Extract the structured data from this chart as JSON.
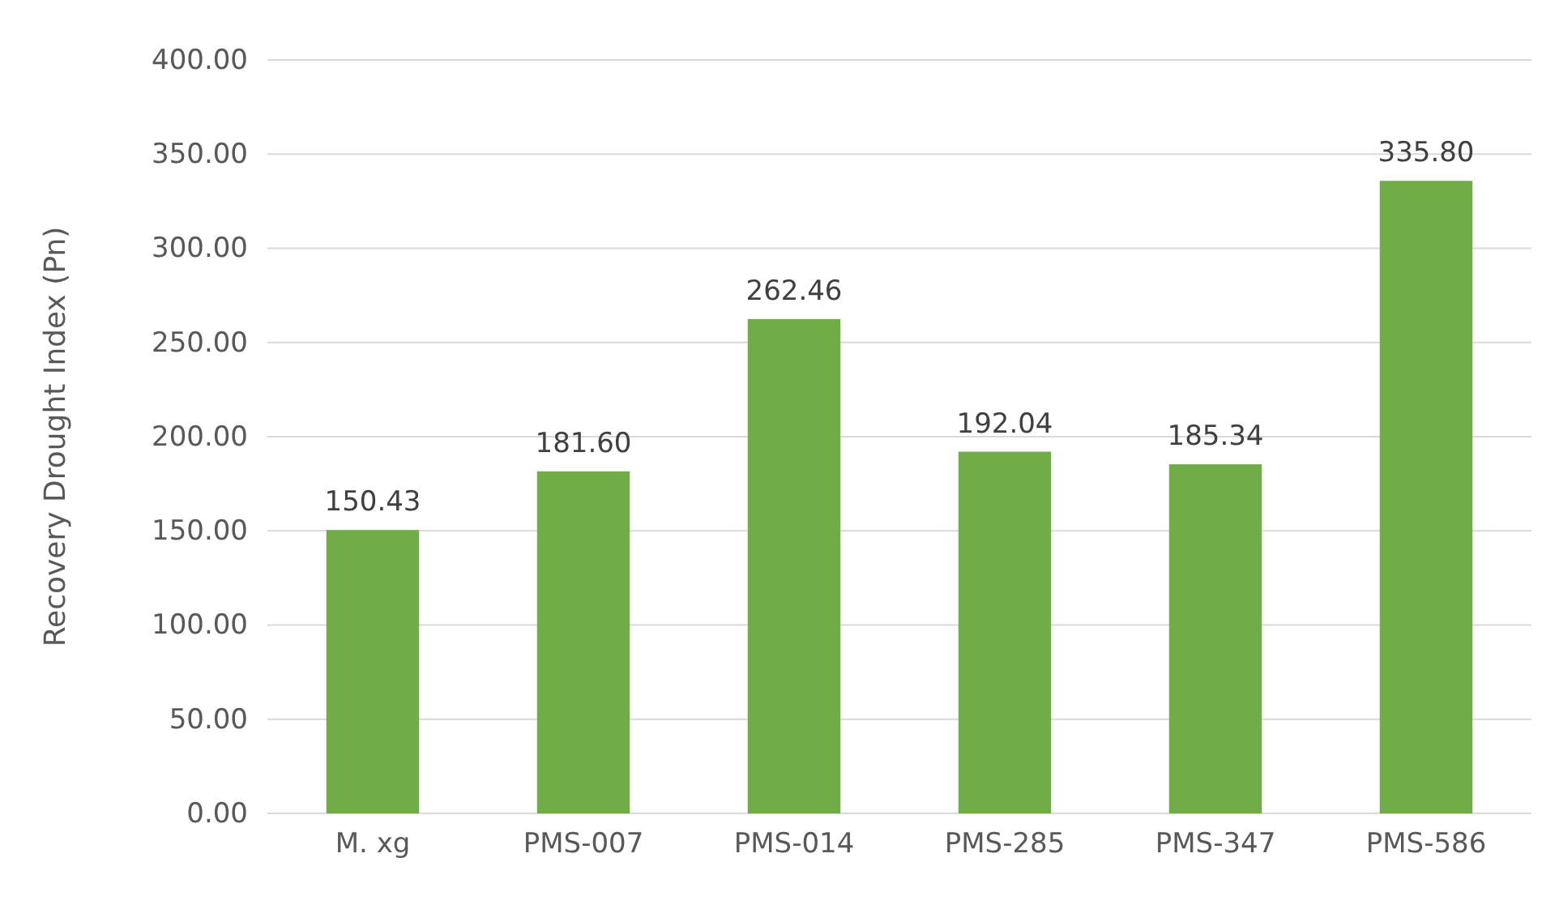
{
  "chart_data": {
    "type": "bar",
    "ylabel": "Recovery Drought Index (Pn)",
    "categories": [
      "M. xg",
      "PMS-007",
      "PMS-014",
      "PMS-285",
      "PMS-347",
      "PMS-586"
    ],
    "values": [
      150.43,
      181.6,
      262.46,
      192.04,
      185.34,
      335.8
    ],
    "value_labels": [
      "150.43",
      "181.60",
      "262.46",
      "192.04",
      "185.34",
      "335.80"
    ],
    "color": "#70ad47",
    "ylim": [
      0,
      400
    ],
    "yticks": [
      {
        "value": 0,
        "label": "0.00"
      },
      {
        "value": 50,
        "label": "50.00"
      },
      {
        "value": 100,
        "label": "100.00"
      },
      {
        "value": 150,
        "label": "150.00"
      },
      {
        "value": 200,
        "label": "200.00"
      },
      {
        "value": 250,
        "label": "250.00"
      },
      {
        "value": 300,
        "label": "300.00"
      },
      {
        "value": 350,
        "label": "350.00"
      },
      {
        "value": 400,
        "label": "400.00"
      }
    ],
    "grid": "y"
  }
}
